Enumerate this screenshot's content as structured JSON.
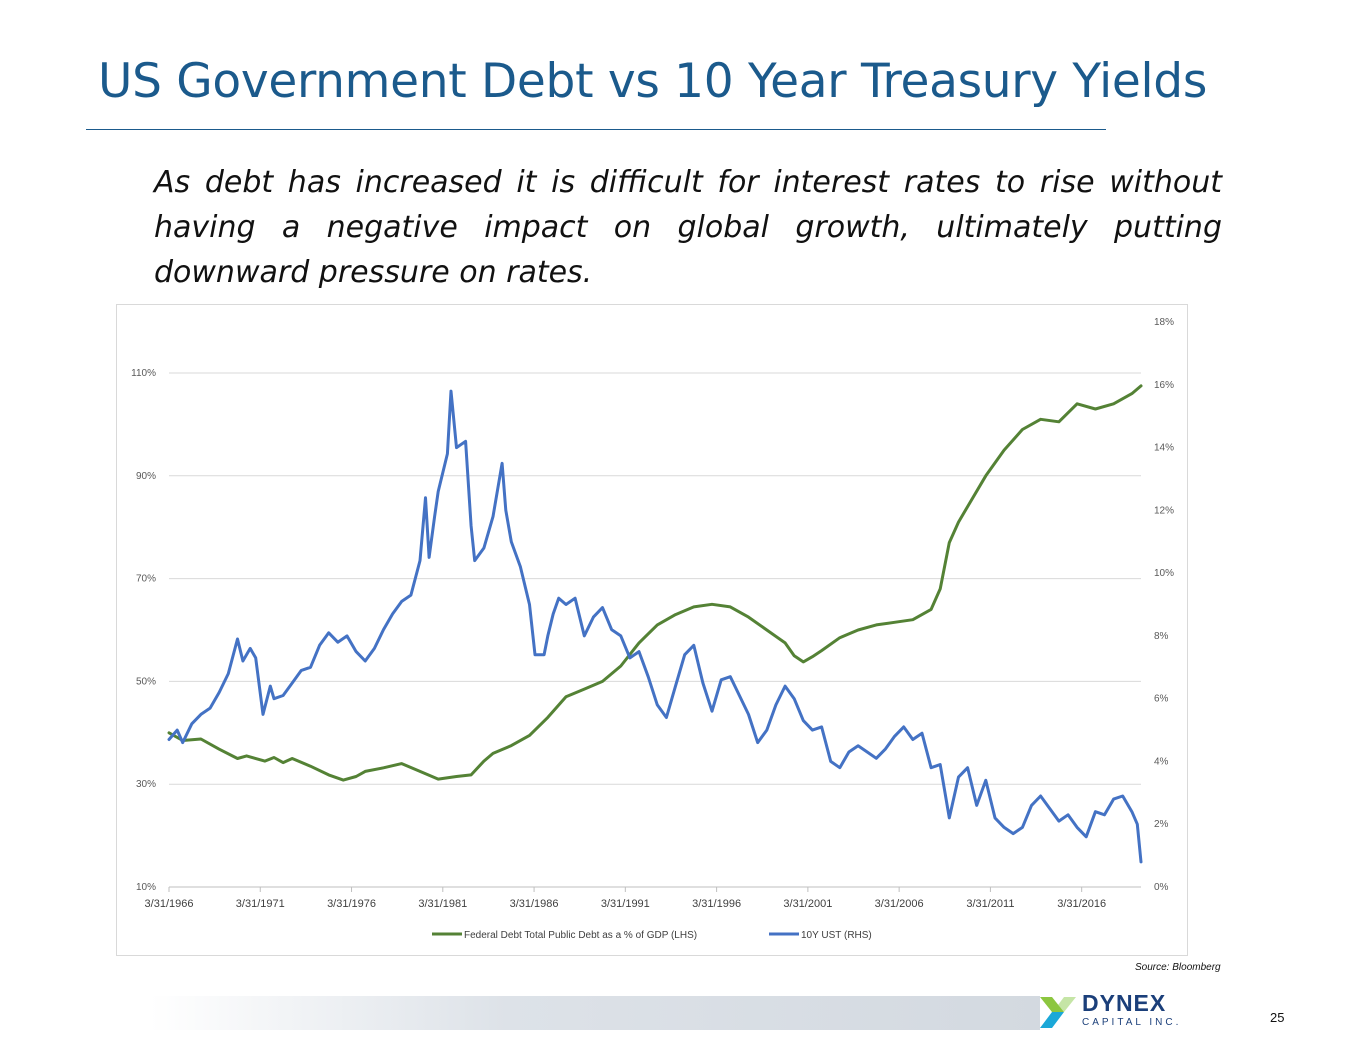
{
  "slide": {
    "title": "US Government Debt vs 10 Year Treasury Yields",
    "subtitle": "As debt has increased it is difficult for interest rates to rise without having a negative impact on global growth, ultimately putting downward pressure on rates.",
    "source": "Source: Bloomberg",
    "page_number": "25",
    "logo": {
      "name": "DYNEX",
      "sub": "CAPITAL INC."
    }
  },
  "colors": {
    "title": "#1b5a8c",
    "debt": "#548235",
    "ust": "#4472c4",
    "grid": "#d9d9d9"
  },
  "chart_data": {
    "type": "line",
    "title": "",
    "xlabel": "",
    "left_axis": {
      "ticks": [
        "10%",
        "30%",
        "50%",
        "70%",
        "90%",
        "110%"
      ],
      "range": [
        10,
        110
      ]
    },
    "right_axis": {
      "ticks": [
        "0%",
        "2%",
        "4%",
        "6%",
        "8%",
        "10%",
        "12%",
        "14%",
        "16%",
        "18%"
      ],
      "range": [
        0,
        18
      ]
    },
    "x_ticks": [
      "3/31/1966",
      "3/31/1971",
      "3/31/1976",
      "3/31/1981",
      "3/31/1986",
      "3/31/1991",
      "3/31/1996",
      "3/31/2001",
      "3/31/2006",
      "3/31/2011",
      "3/31/2016"
    ],
    "x_range": [
      1966.25,
      2019.5
    ],
    "grid": "horizontal",
    "legend_position": "bottom",
    "series": [
      {
        "name": "Federal Debt Total Public Debt as a % of GDP (LHS)",
        "axis": "left",
        "points": [
          [
            1966.25,
            40
          ],
          [
            1967.0,
            38.5
          ],
          [
            1968.0,
            38.8
          ],
          [
            1969.0,
            36.8
          ],
          [
            1970.0,
            35
          ],
          [
            1970.5,
            35.5
          ],
          [
            1971.5,
            34.5
          ],
          [
            1972.0,
            35.2
          ],
          [
            1972.5,
            34.2
          ],
          [
            1973.0,
            35
          ],
          [
            1974.0,
            33.5
          ],
          [
            1975.0,
            31.8
          ],
          [
            1975.8,
            30.8
          ],
          [
            1976.5,
            31.5
          ],
          [
            1977.0,
            32.5
          ],
          [
            1978.0,
            33.2
          ],
          [
            1979.0,
            34
          ],
          [
            1980.0,
            32.5
          ],
          [
            1981.0,
            31
          ],
          [
            1982.0,
            31.5
          ],
          [
            1982.8,
            31.8
          ],
          [
            1983.5,
            34.5
          ],
          [
            1984.0,
            36
          ],
          [
            1985.0,
            37.5
          ],
          [
            1986.0,
            39.5
          ],
          [
            1987.0,
            43
          ],
          [
            1988.0,
            47
          ],
          [
            1989.0,
            48.5
          ],
          [
            1990.0,
            50
          ],
          [
            1991.0,
            53
          ],
          [
            1992.0,
            57.5
          ],
          [
            1993.0,
            61
          ],
          [
            1994.0,
            63
          ],
          [
            1995.0,
            64.5
          ],
          [
            1996.0,
            65
          ],
          [
            1997.0,
            64.5
          ],
          [
            1998.0,
            62.5
          ],
          [
            1999.0,
            60
          ],
          [
            2000.0,
            57.5
          ],
          [
            2000.5,
            55
          ],
          [
            2001.0,
            53.8
          ],
          [
            2001.5,
            54.8
          ],
          [
            2002.0,
            56
          ],
          [
            2003.0,
            58.5
          ],
          [
            2004.0,
            60
          ],
          [
            2005.0,
            61
          ],
          [
            2006.0,
            61.5
          ],
          [
            2007.0,
            62
          ],
          [
            2008.0,
            64
          ],
          [
            2008.5,
            68
          ],
          [
            2009.0,
            77
          ],
          [
            2009.5,
            81
          ],
          [
            2010.0,
            84
          ],
          [
            2011.0,
            90
          ],
          [
            2012.0,
            95
          ],
          [
            2013.0,
            99
          ],
          [
            2014.0,
            101
          ],
          [
            2015.0,
            100.5
          ],
          [
            2016.0,
            104
          ],
          [
            2017.0,
            103
          ],
          [
            2018.0,
            104
          ],
          [
            2019.0,
            106
          ],
          [
            2019.5,
            107.5
          ]
        ]
      },
      {
        "name": "10Y UST (RHS)",
        "axis": "right",
        "points": [
          [
            1966.25,
            4.7
          ],
          [
            1966.7,
            5
          ],
          [
            1967.0,
            4.6
          ],
          [
            1967.5,
            5.2
          ],
          [
            1968.0,
            5.5
          ],
          [
            1968.5,
            5.7
          ],
          [
            1969.0,
            6.2
          ],
          [
            1969.5,
            6.8
          ],
          [
            1970.0,
            7.9
          ],
          [
            1970.3,
            7.2
          ],
          [
            1970.7,
            7.6
          ],
          [
            1971.0,
            7.3
          ],
          [
            1971.4,
            5.5
          ],
          [
            1971.8,
            6.4
          ],
          [
            1972.0,
            6
          ],
          [
            1972.5,
            6.1
          ],
          [
            1973.0,
            6.5
          ],
          [
            1973.5,
            6.9
          ],
          [
            1974.0,
            7
          ],
          [
            1974.5,
            7.7
          ],
          [
            1975.0,
            8.1
          ],
          [
            1975.5,
            7.8
          ],
          [
            1976.0,
            8
          ],
          [
            1976.5,
            7.5
          ],
          [
            1977.0,
            7.2
          ],
          [
            1977.5,
            7.6
          ],
          [
            1978.0,
            8.2
          ],
          [
            1978.5,
            8.7
          ],
          [
            1979.0,
            9.1
          ],
          [
            1979.5,
            9.3
          ],
          [
            1980.0,
            10.4
          ],
          [
            1980.3,
            12.4
          ],
          [
            1980.5,
            10.5
          ],
          [
            1980.8,
            11.8
          ],
          [
            1981.0,
            12.6
          ],
          [
            1981.5,
            13.8
          ],
          [
            1981.7,
            15.8
          ],
          [
            1982.0,
            14
          ],
          [
            1982.5,
            14.2
          ],
          [
            1982.8,
            11.5
          ],
          [
            1983.0,
            10.4
          ],
          [
            1983.5,
            10.8
          ],
          [
            1984.0,
            11.8
          ],
          [
            1984.5,
            13.5
          ],
          [
            1984.7,
            12
          ],
          [
            1985.0,
            11
          ],
          [
            1985.5,
            10.2
          ],
          [
            1986.0,
            9
          ],
          [
            1986.3,
            7.4
          ],
          [
            1986.8,
            7.4
          ],
          [
            1987.0,
            8
          ],
          [
            1987.3,
            8.7
          ],
          [
            1987.6,
            9.2
          ],
          [
            1988.0,
            9
          ],
          [
            1988.5,
            9.2
          ],
          [
            1989.0,
            8
          ],
          [
            1989.5,
            8.6
          ],
          [
            1990.0,
            8.9
          ],
          [
            1990.5,
            8.2
          ],
          [
            1991.0,
            8
          ],
          [
            1991.5,
            7.3
          ],
          [
            1992.0,
            7.5
          ],
          [
            1992.5,
            6.7
          ],
          [
            1993.0,
            5.8
          ],
          [
            1993.5,
            5.4
          ],
          [
            1994.0,
            6.4
          ],
          [
            1994.5,
            7.4
          ],
          [
            1995.0,
            7.7
          ],
          [
            1995.5,
            6.5
          ],
          [
            1996.0,
            5.6
          ],
          [
            1996.5,
            6.6
          ],
          [
            1997.0,
            6.7
          ],
          [
            1997.5,
            6.1
          ],
          [
            1998.0,
            5.5
          ],
          [
            1998.5,
            4.6
          ],
          [
            1999.0,
            5
          ],
          [
            1999.5,
            5.8
          ],
          [
            2000.0,
            6.4
          ],
          [
            2000.5,
            6
          ],
          [
            2001.0,
            5.3
          ],
          [
            2001.5,
            5
          ],
          [
            2002.0,
            5.1
          ],
          [
            2002.5,
            4
          ],
          [
            2003.0,
            3.8
          ],
          [
            2003.5,
            4.3
          ],
          [
            2004.0,
            4.5
          ],
          [
            2004.5,
            4.3
          ],
          [
            2005.0,
            4.1
          ],
          [
            2005.5,
            4.4
          ],
          [
            2006.0,
            4.8
          ],
          [
            2006.5,
            5.1
          ],
          [
            2007.0,
            4.7
          ],
          [
            2007.5,
            4.9
          ],
          [
            2008.0,
            3.8
          ],
          [
            2008.5,
            3.9
          ],
          [
            2009.0,
            2.2
          ],
          [
            2009.5,
            3.5
          ],
          [
            2010.0,
            3.8
          ],
          [
            2010.5,
            2.6
          ],
          [
            2011.0,
            3.4
          ],
          [
            2011.5,
            2.2
          ],
          [
            2012.0,
            1.9
          ],
          [
            2012.5,
            1.7
          ],
          [
            2013.0,
            1.9
          ],
          [
            2013.5,
            2.6
          ],
          [
            2014.0,
            2.9
          ],
          [
            2014.5,
            2.5
          ],
          [
            2015.0,
            2.1
          ],
          [
            2015.5,
            2.3
          ],
          [
            2016.0,
            1.9
          ],
          [
            2016.5,
            1.6
          ],
          [
            2017.0,
            2.4
          ],
          [
            2017.5,
            2.3
          ],
          [
            2018.0,
            2.8
          ],
          [
            2018.5,
            2.9
          ],
          [
            2019.0,
            2.4
          ],
          [
            2019.3,
            2
          ],
          [
            2019.5,
            0.8
          ]
        ]
      }
    ]
  }
}
